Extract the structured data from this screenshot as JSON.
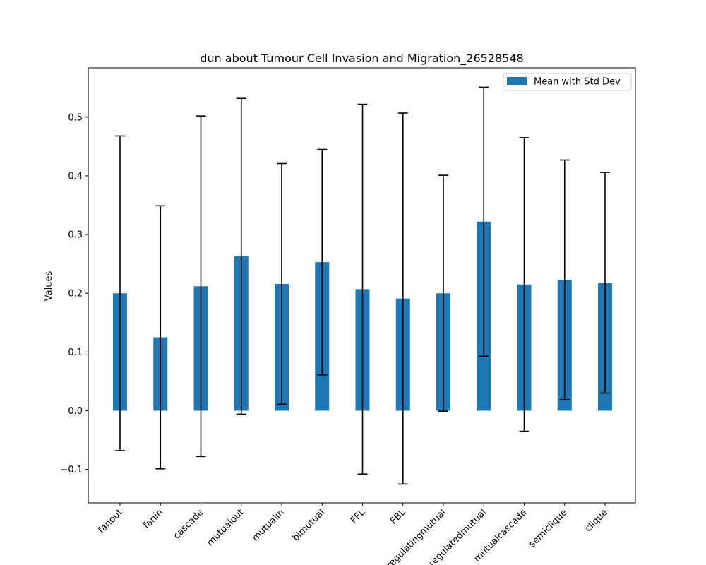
{
  "chart_data": {
    "type": "bar",
    "title": "dun about Tumour Cell Invasion and Migration_26528548",
    "xlabel": "",
    "ylabel": "Values",
    "ylim": [
      -0.157,
      0.584
    ],
    "yticks": [
      -0.1,
      0.0,
      0.1,
      0.2,
      0.3,
      0.4,
      0.5
    ],
    "ytick_labels": [
      "−0.1",
      "0.0",
      "0.1",
      "0.2",
      "0.3",
      "0.4",
      "0.5"
    ],
    "grid": false,
    "legend_position": "top-right",
    "categories": [
      "fanout",
      "fanin",
      "cascade",
      "mutualout",
      "mutualin",
      "bimutual",
      "FFL",
      "FBL",
      "regulatingmutual",
      "regulatedmutual",
      "mutualcascade",
      "semiclique",
      "clique"
    ],
    "series": [
      {
        "name": "Mean with Std Dev",
        "color": "#1f77b4",
        "values": [
          0.2,
          0.125,
          0.212,
          0.263,
          0.216,
          0.253,
          0.207,
          0.191,
          0.2,
          0.322,
          0.215,
          0.223,
          0.218
        ],
        "error": [
          0.268,
          0.224,
          0.29,
          0.269,
          0.205,
          0.192,
          0.315,
          0.316,
          0.201,
          0.229,
          0.25,
          0.204,
          0.188
        ]
      }
    ]
  }
}
